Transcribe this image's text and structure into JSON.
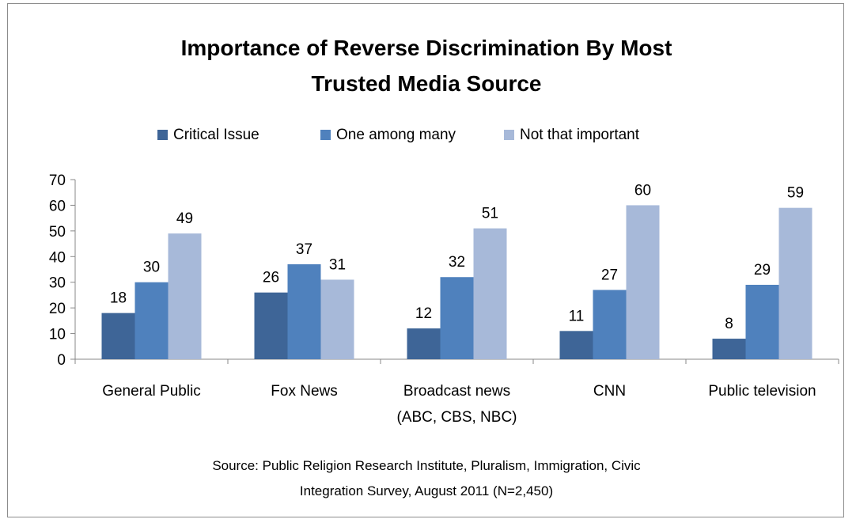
{
  "chart_data": {
    "type": "bar",
    "title_lines": [
      "Importance of Reverse Discrimination  By Most",
      "Trusted Media Source"
    ],
    "categories": [
      [
        "General Public"
      ],
      [
        "Fox News"
      ],
      [
        "Broadcast news",
        "(ABC, CBS, NBC)"
      ],
      [
        "CNN"
      ],
      [
        "Public television"
      ]
    ],
    "series": [
      {
        "name": "Critical  Issue",
        "color": "#3e6597",
        "values": [
          18,
          26,
          12,
          11,
          8
        ]
      },
      {
        "name": "One among many",
        "color": "#4f81bd",
        "values": [
          30,
          37,
          32,
          27,
          29
        ]
      },
      {
        "name": "Not that important",
        "color": "#a7b9d9",
        "values": [
          49,
          31,
          51,
          60,
          59
        ]
      }
    ],
    "ylim": [
      0,
      70
    ],
    "yticks": [
      0,
      10,
      20,
      30,
      40,
      50,
      60,
      70
    ],
    "grid": false,
    "legend_position": "top",
    "data_labels": true,
    "source_lines": [
      "Source: Public Religion Research Institute, Pluralism, Immigration, Civic",
      "Integration Survey, August 2011 (N=2,450)"
    ]
  }
}
